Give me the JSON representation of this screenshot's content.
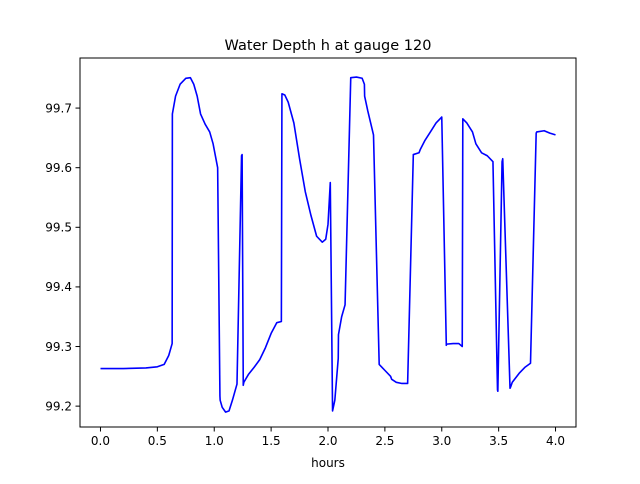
{
  "chart_data": {
    "type": "line",
    "title": "Water Depth h at gauge 120",
    "xlabel": "hours",
    "ylabel": "",
    "xlim": [
      -0.18,
      4.18
    ],
    "ylim": [
      99.165,
      99.784
    ],
    "grid": false,
    "xticks": [
      0.0,
      0.5,
      1.0,
      1.5,
      2.0,
      2.5,
      3.0,
      3.5,
      4.0
    ],
    "xtick_labels": [
      "0.0",
      "0.5",
      "1.0",
      "1.5",
      "2.0",
      "2.5",
      "3.0",
      "3.5",
      "4.0"
    ],
    "yticks": [
      99.2,
      99.3,
      99.4,
      99.5,
      99.6,
      99.7
    ],
    "ytick_labels": [
      "99.2",
      "99.3",
      "99.4",
      "99.5",
      "99.6",
      "99.7"
    ],
    "series": [
      {
        "color": "#0000ff",
        "x": [
          0.0,
          0.2,
          0.4,
          0.5,
          0.56,
          0.6,
          0.63,
          0.632,
          0.66,
          0.7,
          0.75,
          0.79,
          0.82,
          0.85,
          0.88,
          0.92,
          0.96,
          0.99,
          1.03,
          1.05,
          1.052,
          1.07,
          1.1,
          1.13,
          1.16,
          1.2,
          1.24,
          1.245,
          1.255,
          1.26,
          1.3,
          1.35,
          1.4,
          1.45,
          1.5,
          1.55,
          1.59,
          1.595,
          1.62,
          1.65,
          1.7,
          1.75,
          1.8,
          1.85,
          1.9,
          1.95,
          1.98,
          2.0,
          2.02,
          2.04,
          2.06,
          2.09,
          2.092,
          2.12,
          2.15,
          2.2,
          2.25,
          2.3,
          2.32,
          2.322,
          2.35,
          2.4,
          2.45,
          2.5,
          2.55,
          2.56,
          2.6,
          2.65,
          2.7,
          2.75,
          2.8,
          2.81,
          2.85,
          2.9,
          2.95,
          3.0,
          3.04,
          3.043,
          3.1,
          3.15,
          3.18,
          3.185,
          3.22,
          3.27,
          3.3,
          3.35,
          3.4,
          3.45,
          3.49,
          3.493,
          3.53,
          3.536,
          3.6,
          3.605,
          3.62,
          3.68,
          3.73,
          3.78,
          3.83,
          3.835,
          3.9,
          3.95,
          4.0
        ],
        "y": [
          99.263,
          99.263,
          99.264,
          99.266,
          99.27,
          99.285,
          99.305,
          99.69,
          99.72,
          99.74,
          99.75,
          99.751,
          99.74,
          99.72,
          99.69,
          99.673,
          99.66,
          99.64,
          99.6,
          99.217,
          99.21,
          99.198,
          99.19,
          99.192,
          99.21,
          99.237,
          99.62,
          99.622,
          99.235,
          99.24,
          99.253,
          99.265,
          99.278,
          99.298,
          99.322,
          99.34,
          99.342,
          99.724,
          99.722,
          99.71,
          99.675,
          99.615,
          99.56,
          99.52,
          99.485,
          99.475,
          99.48,
          99.505,
          99.575,
          99.192,
          99.21,
          99.28,
          99.32,
          99.35,
          99.37,
          99.751,
          99.752,
          99.75,
          99.74,
          99.72,
          99.695,
          99.655,
          99.27,
          99.26,
          99.25,
          99.245,
          99.24,
          99.238,
          99.238,
          99.622,
          99.625,
          99.63,
          99.645,
          99.66,
          99.675,
          99.685,
          99.302,
          99.304,
          99.305,
          99.305,
          99.3,
          99.682,
          99.675,
          99.66,
          99.64,
          99.625,
          99.62,
          99.61,
          99.227,
          99.225,
          99.61,
          99.615,
          99.23,
          99.232,
          99.24,
          99.255,
          99.265,
          99.272,
          99.658,
          99.66,
          99.662,
          99.658,
          99.655
        ]
      }
    ]
  }
}
